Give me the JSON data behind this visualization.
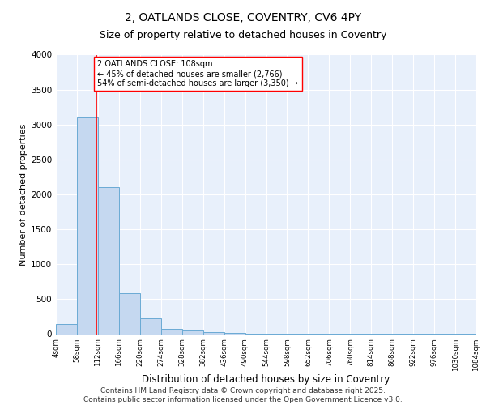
{
  "title1": "2, OATLANDS CLOSE, COVENTRY, CV6 4PY",
  "title2": "Size of property relative to detached houses in Coventry",
  "xlabel": "Distribution of detached houses by size in Coventry",
  "ylabel": "Number of detached properties",
  "bin_edges": [
    4,
    58,
    112,
    166,
    220,
    274,
    328,
    382,
    436,
    490,
    544,
    598,
    652,
    706,
    760,
    814,
    868,
    922,
    976,
    1030,
    1084
  ],
  "bar_heights": [
    150,
    3100,
    2100,
    580,
    230,
    70,
    50,
    30,
    15,
    10,
    8,
    5,
    4,
    3,
    2,
    2,
    1,
    1,
    1,
    1
  ],
  "bar_color": "#c5d8f0",
  "bar_edge_color": "#6aaad4",
  "vline_x": 108,
  "vline_color": "red",
  "vline_lw": 1.2,
  "annotation_text": "2 OATLANDS CLOSE: 108sqm\n← 45% of detached houses are smaller (2,766)\n54% of semi-detached houses are larger (3,350) →",
  "annotation_box_color": "white",
  "annotation_box_edge": "red",
  "annotation_fontsize": 7.0,
  "ylim": [
    0,
    4000
  ],
  "yticks": [
    0,
    500,
    1000,
    1500,
    2000,
    2500,
    3000,
    3500,
    4000
  ],
  "background_color": "#e8f0fb",
  "grid_color": "white",
  "title_fontsize": 10,
  "subtitle_fontsize": 9,
  "footer_text": "Contains HM Land Registry data © Crown copyright and database right 2025.\nContains public sector information licensed under the Open Government Licence v3.0.",
  "footer_fontsize": 6.5
}
